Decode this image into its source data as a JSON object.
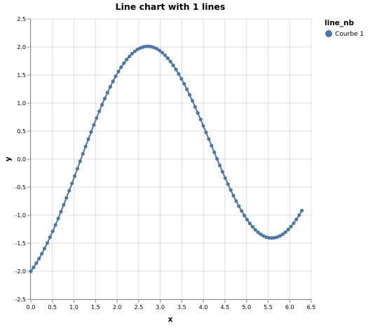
{
  "chart_data": {
    "type": "line",
    "title": "Line chart with 1 lines",
    "xlabel": "x",
    "ylabel": "y",
    "xlim": [
      0.0,
      6.5
    ],
    "ylim": [
      -2.5,
      2.5
    ],
    "x_ticks": [
      0.0,
      0.5,
      1.0,
      1.5,
      2.0,
      2.5,
      3.0,
      3.5,
      4.0,
      4.5,
      5.0,
      5.5,
      6.0,
      6.5
    ],
    "y_ticks": [
      -2.5,
      -2.0,
      -1.5,
      -1.0,
      -0.5,
      0.0,
      0.5,
      1.0,
      1.5,
      2.0,
      2.5
    ],
    "x_tick_labels": [
      "0.0",
      "0.5",
      "1.0",
      "1.5",
      "2.0",
      "2.5",
      "3.0",
      "3.5",
      "4.0",
      "4.5",
      "5.0",
      "5.5",
      "6.0",
      "6.5"
    ],
    "y_tick_labels": [
      "-2.5",
      "-2.0",
      "-1.5",
      "-1.0",
      "-0.5",
      "0.0",
      "0.5",
      "1.0",
      "1.5",
      "2.0",
      "2.5"
    ],
    "grid": true,
    "legend": {
      "title": "line_nb",
      "position": "top-right"
    },
    "series": [
      {
        "name": "Courbe 1",
        "color": "#4c78a8",
        "x": [
          0.0,
          0.063,
          0.127,
          0.19,
          0.254,
          0.317,
          0.381,
          0.444,
          0.508,
          0.571,
          0.635,
          0.698,
          0.762,
          0.825,
          0.889,
          0.952,
          1.016,
          1.079,
          1.142,
          1.206,
          1.269,
          1.333,
          1.396,
          1.46,
          1.523,
          1.587,
          1.65,
          1.714,
          1.777,
          1.841,
          1.904,
          1.967,
          2.031,
          2.094,
          2.158,
          2.221,
          2.285,
          2.348,
          2.412,
          2.475,
          2.539,
          2.602,
          2.666,
          2.729,
          2.793,
          2.856,
          2.919,
          2.983,
          3.046,
          3.11,
          3.173,
          3.237,
          3.3,
          3.364,
          3.427,
          3.491,
          3.554,
          3.618,
          3.681,
          3.744,
          3.808,
          3.871,
          3.935,
          3.998,
          4.062,
          4.125,
          4.189,
          4.252,
          4.316,
          4.379,
          4.443,
          4.506,
          4.57,
          4.633,
          4.696,
          4.76,
          4.823,
          4.887,
          4.95,
          5.014,
          5.077,
          5.141,
          5.204,
          5.268,
          5.331,
          5.395,
          5.458,
          5.521,
          5.585,
          5.648,
          5.712,
          5.775,
          5.839,
          5.902,
          5.966,
          6.029,
          6.093,
          6.156,
          6.22,
          6.283
        ],
        "y": [
          -2.0,
          -1.931,
          -1.856,
          -1.775,
          -1.688,
          -1.595,
          -1.497,
          -1.394,
          -1.287,
          -1.175,
          -1.059,
          -0.939,
          -0.816,
          -0.691,
          -0.563,
          -0.434,
          -0.303,
          -0.171,
          -0.039,
          0.093,
          0.225,
          0.355,
          0.483,
          0.609,
          0.732,
          0.852,
          0.968,
          1.08,
          1.187,
          1.289,
          1.386,
          1.477,
          1.561,
          1.64,
          1.711,
          1.775,
          1.832,
          1.881,
          1.923,
          1.957,
          1.982,
          2.0,
          2.01,
          2.011,
          2.005,
          1.99,
          1.968,
          1.937,
          1.899,
          1.853,
          1.8,
          1.739,
          1.672,
          1.599,
          1.519,
          1.433,
          1.342,
          1.246,
          1.146,
          1.041,
          0.933,
          0.822,
          0.709,
          0.593,
          0.476,
          0.358,
          0.24,
          0.121,
          0.004,
          -0.112,
          -0.226,
          -0.338,
          -0.446,
          -0.551,
          -0.652,
          -0.749,
          -0.84,
          -0.926,
          -1.006,
          -1.08,
          -1.147,
          -1.207,
          -1.26,
          -1.305,
          -1.342,
          -1.371,
          -1.392,
          -1.404,
          -1.408,
          -1.404,
          -1.391,
          -1.37,
          -1.341,
          -1.303,
          -1.258,
          -1.204,
          -1.143,
          -1.075,
          -1.0,
          -0.919
        ]
      }
    ]
  }
}
